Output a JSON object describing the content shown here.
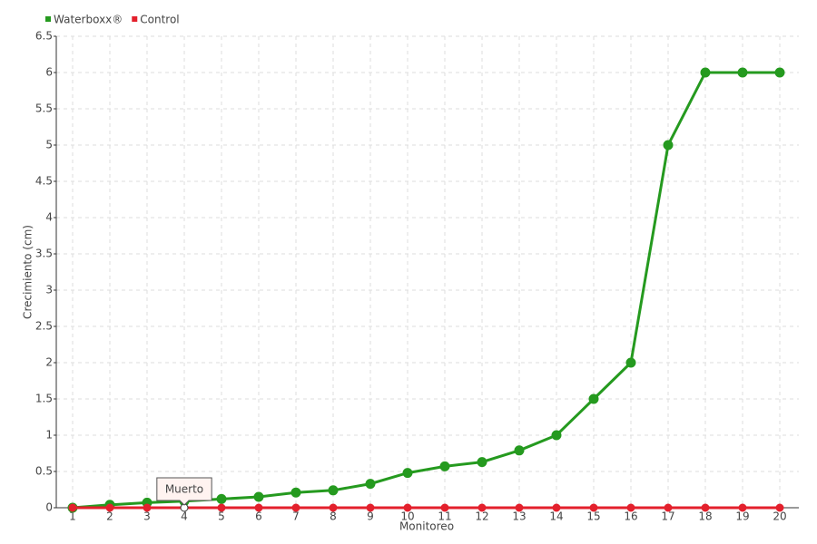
{
  "chart_data": {
    "type": "line",
    "x_label": "Monitoreo",
    "y_label": "Crecimiento (cm)",
    "categories": [
      "1",
      "2",
      "3",
      "4",
      "5",
      "6",
      "7",
      "8",
      "9",
      "10",
      "11",
      "12",
      "13",
      "14",
      "15",
      "16",
      "17",
      "18",
      "19",
      "20"
    ],
    "series": [
      {
        "name": "Waterboxx®",
        "color": "#259a1f",
        "values": [
          0,
          0.04,
          0.07,
          0.09,
          0.12,
          0.15,
          0.21,
          0.24,
          0.33,
          0.48,
          0.57,
          0.63,
          0.79,
          1,
          1.5,
          2,
          5,
          6,
          6,
          6
        ]
      },
      {
        "name": "Control",
        "color": "#e3202c",
        "values": [
          0,
          0,
          0,
          0,
          0,
          0,
          0,
          0,
          0,
          0,
          0,
          0,
          0,
          0,
          0,
          0,
          0,
          0,
          0,
          0
        ]
      }
    ],
    "annotations": [
      {
        "text": "Muerto",
        "category": "4"
      }
    ],
    "ylim": [
      0,
      6.5
    ],
    "yticks": [
      0,
      0.5,
      1,
      1.5,
      2,
      2.5,
      3,
      3.5,
      4,
      4.5,
      5,
      5.5,
      6,
      6.5
    ],
    "grid": true,
    "legend": "top-left"
  }
}
